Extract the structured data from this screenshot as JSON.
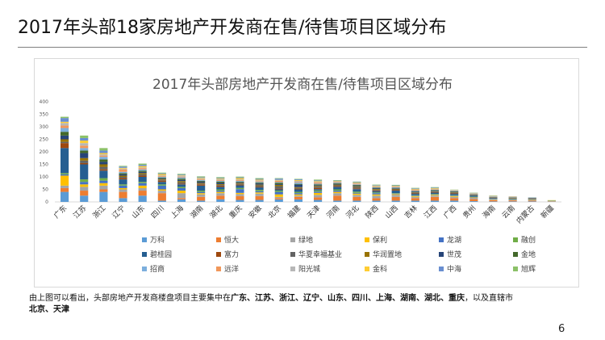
{
  "slide": {
    "title": "2017年头部18家房地产开发商在售/待售项目区域分布",
    "caption_prefix": "由上图可以看出，头部房地产开发商楼盘项目主要集中在",
    "caption_highlight_1": "广东、江苏、浙江、辽宁、山东、四川、上海、湖南、湖北、重庆",
    "caption_mid": "，以及直辖市",
    "caption_highlight_2": "北京、天津",
    "page_number": "6"
  },
  "chart_data": {
    "type": "bar",
    "stacked": true,
    "title": "2017年头部房地产开发商在售/待售项目区域分布",
    "xlabel": "",
    "ylabel": "",
    "ylim": [
      0,
      400
    ],
    "y_ticks": [
      "0",
      "50",
      "100",
      "150",
      "200",
      "250",
      "300",
      "350",
      "400"
    ],
    "grid": false,
    "legend_position": "bottom",
    "categories": [
      "广东",
      "江苏",
      "浙江",
      "辽宁",
      "山东",
      "四川",
      "上海",
      "湖南",
      "湖北",
      "重庆",
      "安徽",
      "北京",
      "福建",
      "天津",
      "河南",
      "河北",
      "陕西",
      "山西",
      "吉林",
      "江西",
      "广西",
      "贵州",
      "海南",
      "云南",
      "内蒙古",
      "新疆"
    ],
    "series": [
      {
        "name": "万科",
        "color": "#5b9bd5",
        "values": [
          40,
          25,
          40,
          15,
          25,
          5,
          10,
          5,
          10,
          8,
          8,
          10,
          10,
          8,
          5,
          5,
          5,
          5,
          5,
          5,
          5,
          3,
          2,
          2,
          2,
          1
        ]
      },
      {
        "name": "恒大",
        "color": "#ed7d31",
        "values": [
          15,
          20,
          10,
          25,
          20,
          30,
          5,
          15,
          15,
          15,
          15,
          5,
          10,
          10,
          20,
          15,
          10,
          15,
          10,
          15,
          10,
          8,
          5,
          4,
          3,
          1
        ]
      },
      {
        "name": "绿地",
        "color": "#a5a5a5",
        "values": [
          10,
          15,
          15,
          10,
          10,
          10,
          20,
          10,
          10,
          8,
          10,
          5,
          5,
          10,
          10,
          8,
          10,
          8,
          5,
          5,
          5,
          5,
          2,
          2,
          2,
          1
        ]
      },
      {
        "name": "保利",
        "color": "#ffc000",
        "values": [
          40,
          10,
          10,
          5,
          10,
          5,
          10,
          5,
          5,
          5,
          5,
          10,
          5,
          8,
          5,
          5,
          5,
          3,
          3,
          3,
          3,
          2,
          1,
          1,
          1,
          1
        ]
      },
      {
        "name": "龙湖",
        "color": "#4472c4",
        "values": [
          5,
          10,
          10,
          10,
          10,
          15,
          10,
          5,
          5,
          15,
          5,
          10,
          5,
          5,
          5,
          3,
          5,
          2,
          2,
          2,
          2,
          2,
          1,
          1,
          1,
          0
        ]
      },
      {
        "name": "融创",
        "color": "#70ad47",
        "values": [
          5,
          10,
          10,
          5,
          5,
          5,
          5,
          5,
          5,
          5,
          5,
          5,
          5,
          5,
          5,
          5,
          3,
          2,
          2,
          2,
          2,
          1,
          1,
          1,
          1,
          1
        ]
      },
      {
        "name": "碧桂园",
        "color": "#255e91",
        "values": [
          100,
          60,
          30,
          20,
          20,
          10,
          10,
          20,
          10,
          10,
          10,
          5,
          10,
          5,
          10,
          10,
          5,
          10,
          5,
          5,
          5,
          5,
          3,
          2,
          2,
          1
        ]
      },
      {
        "name": "富力",
        "color": "#9e480e",
        "values": [
          20,
          5,
          5,
          5,
          5,
          5,
          3,
          5,
          5,
          3,
          3,
          3,
          3,
          5,
          3,
          3,
          3,
          3,
          2,
          2,
          2,
          1,
          1,
          1,
          1,
          0
        ]
      },
      {
        "name": "华夏幸福基业",
        "color": "#636363",
        "values": [
          5,
          10,
          10,
          5,
          5,
          3,
          5,
          3,
          3,
          3,
          5,
          10,
          3,
          5,
          3,
          5,
          3,
          2,
          2,
          2,
          2,
          1,
          1,
          1,
          1,
          0
        ]
      },
      {
        "name": "华润置地",
        "color": "#997300",
        "values": [
          10,
          10,
          10,
          5,
          5,
          3,
          5,
          3,
          3,
          3,
          3,
          5,
          3,
          3,
          3,
          3,
          3,
          2,
          2,
          2,
          2,
          1,
          1,
          1,
          1,
          0
        ]
      },
      {
        "name": "世茂",
        "color": "#264478",
        "values": [
          15,
          20,
          10,
          5,
          5,
          3,
          5,
          5,
          5,
          3,
          5,
          3,
          10,
          3,
          3,
          3,
          3,
          2,
          3,
          2,
          2,
          1,
          1,
          1,
          1,
          0
        ]
      },
      {
        "name": "金地",
        "color": "#43682b",
        "values": [
          15,
          10,
          10,
          5,
          5,
          3,
          5,
          3,
          5,
          3,
          3,
          5,
          3,
          3,
          3,
          3,
          2,
          2,
          2,
          2,
          2,
          1,
          1,
          1,
          1,
          0
        ]
      },
      {
        "name": "招商",
        "color": "#7cafdd",
        "values": [
          15,
          10,
          10,
          5,
          5,
          3,
          5,
          3,
          3,
          3,
          3,
          3,
          5,
          3,
          2,
          2,
          2,
          2,
          2,
          2,
          2,
          1,
          1,
          1,
          1,
          0
        ]
      },
      {
        "name": "远洋",
        "color": "#f1975a",
        "values": [
          10,
          10,
          5,
          10,
          5,
          3,
          3,
          3,
          3,
          3,
          3,
          5,
          2,
          5,
          2,
          3,
          2,
          2,
          3,
          2,
          1,
          1,
          1,
          1,
          0,
          0
        ]
      },
      {
        "name": "阳光城",
        "color": "#b7b7b7",
        "values": [
          10,
          10,
          5,
          3,
          3,
          3,
          3,
          3,
          3,
          3,
          3,
          2,
          5,
          2,
          2,
          2,
          2,
          2,
          2,
          2,
          1,
          1,
          1,
          0,
          0,
          0
        ]
      },
      {
        "name": "金科",
        "color": "#ffcd33",
        "values": [
          5,
          10,
          5,
          3,
          5,
          5,
          2,
          3,
          3,
          5,
          3,
          2,
          3,
          3,
          2,
          2,
          2,
          2,
          2,
          2,
          1,
          1,
          1,
          1,
          0,
          1
        ]
      },
      {
        "name": "中海",
        "color": "#698ed0",
        "values": [
          15,
          10,
          10,
          5,
          5,
          3,
          3,
          3,
          3,
          3,
          3,
          5,
          3,
          3,
          2,
          2,
          2,
          2,
          2,
          2,
          1,
          1,
          1,
          1,
          0,
          0
        ]
      },
      {
        "name": "旭辉",
        "color": "#8cc168",
        "values": [
          5,
          10,
          10,
          3,
          5,
          3,
          3,
          3,
          3,
          3,
          3,
          2,
          2,
          3,
          2,
          2,
          2,
          2,
          2,
          2,
          1,
          1,
          1,
          0,
          0,
          0
        ]
      }
    ]
  }
}
